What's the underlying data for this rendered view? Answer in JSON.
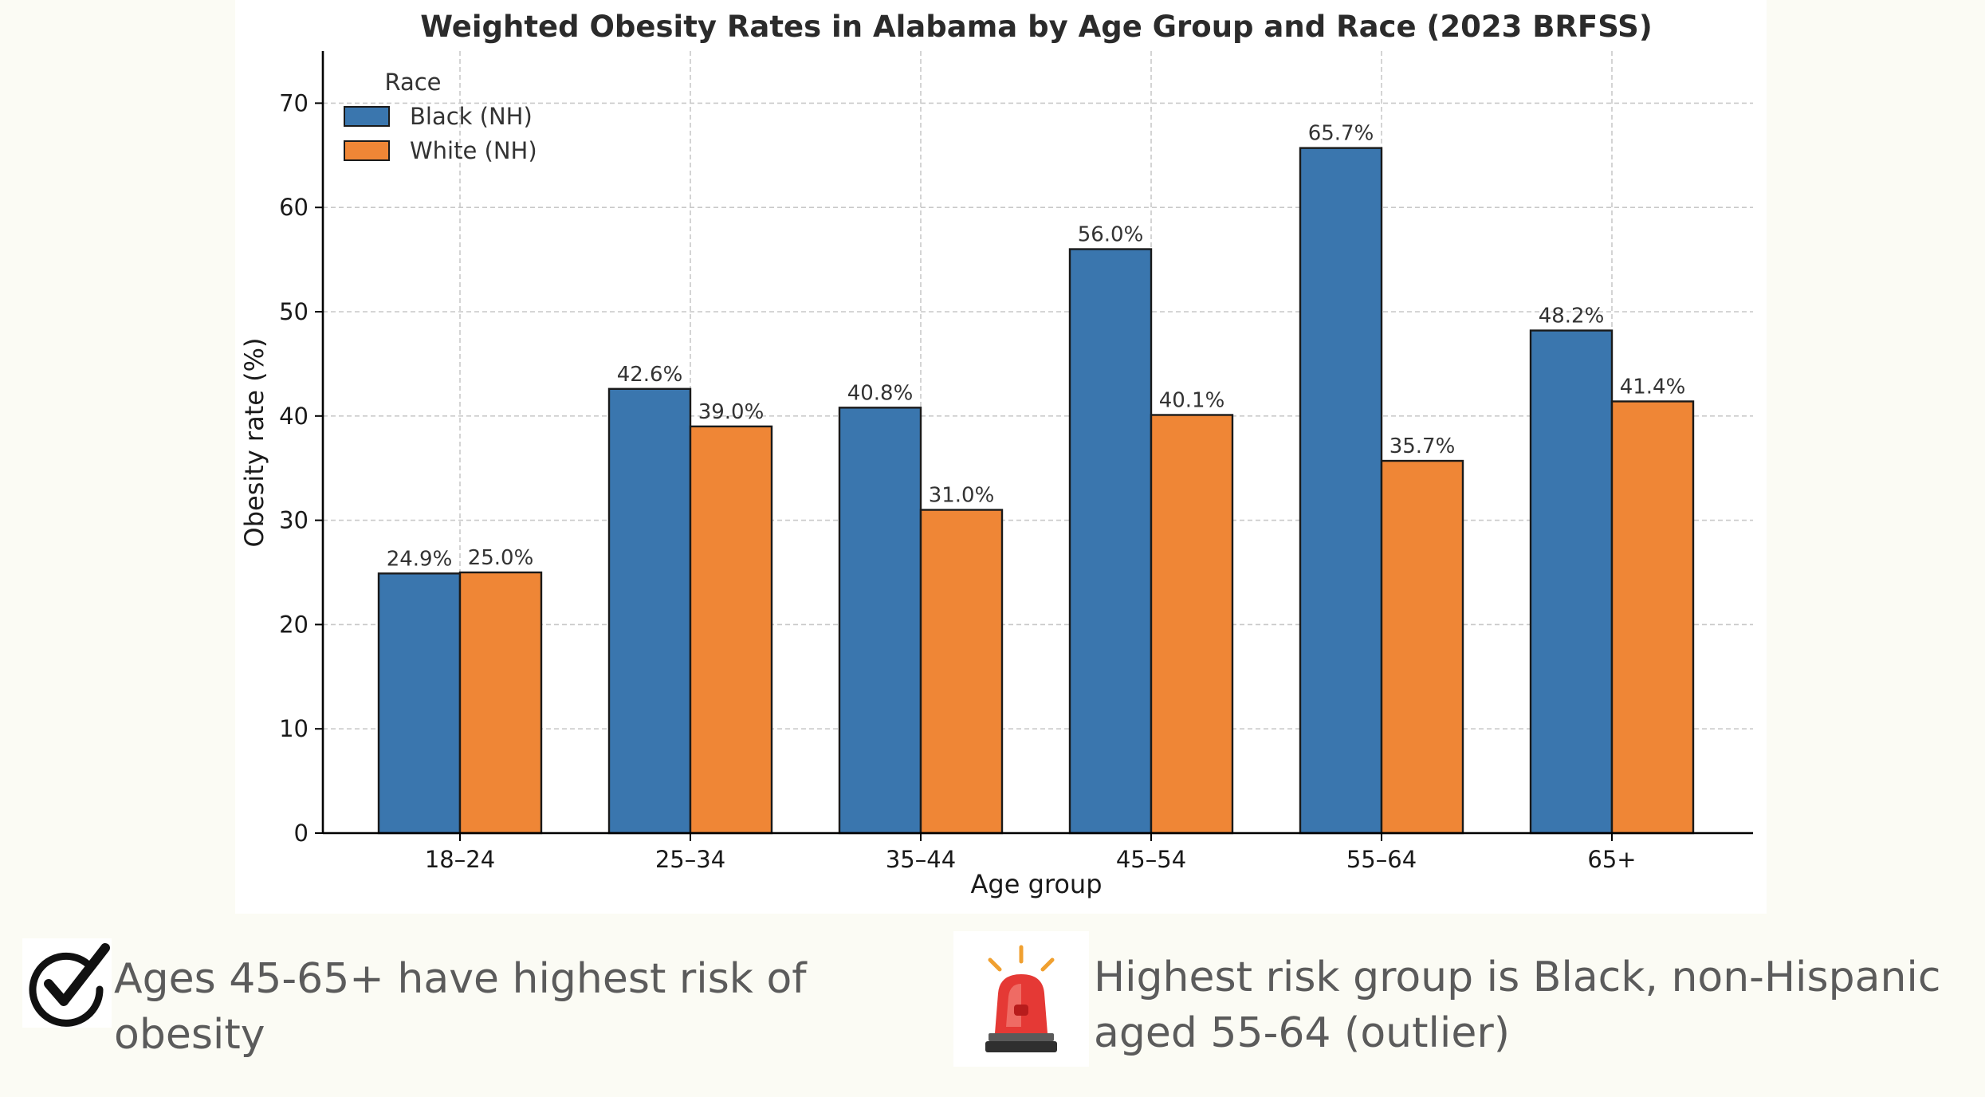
{
  "chart_data": {
    "type": "bar",
    "title": "Weighted Obesity Rates in Alabama by Age Group and Race (2023 BRFSS)",
    "xlabel": "Age group",
    "ylabel": "Obesity rate (%)",
    "categories": [
      "18–24",
      "25–34",
      "35–44",
      "45–54",
      "55–64",
      "65+"
    ],
    "series": [
      {
        "name": "Black (NH)",
        "values": [
          24.9,
          42.6,
          40.8,
          56.0,
          65.7,
          48.2
        ],
        "labels": [
          "24.9%",
          "42.6%",
          "40.8%",
          "56.0%",
          "65.7%",
          "48.2%"
        ],
        "color": "#3a76ae"
      },
      {
        "name": "White (NH)",
        "values": [
          25.0,
          39.0,
          31.0,
          40.1,
          35.7,
          41.4
        ],
        "labels": [
          "25.0%",
          "39.0%",
          "31.0%",
          "40.1%",
          "35.7%",
          "41.4%"
        ],
        "color": "#ef8636"
      }
    ],
    "ylim": [
      0,
      75
    ],
    "yticks": [
      0,
      10,
      20,
      30,
      40,
      50,
      60,
      70
    ],
    "ytick_labels": [
      "0",
      "10",
      "20",
      "30",
      "40",
      "50",
      "60",
      "70"
    ],
    "grid": true,
    "legend": {
      "title": "Race",
      "placement": "top-left"
    }
  },
  "notes": {
    "left": {
      "icon": "checkmark-icon",
      "text": "Ages 45-65+ have highest risk of obesity"
    },
    "right": {
      "icon": "siren-icon",
      "text": "Highest risk group is Black, non-Hispanic aged 55-64 (outlier)",
      "accent": "#e53935"
    }
  }
}
